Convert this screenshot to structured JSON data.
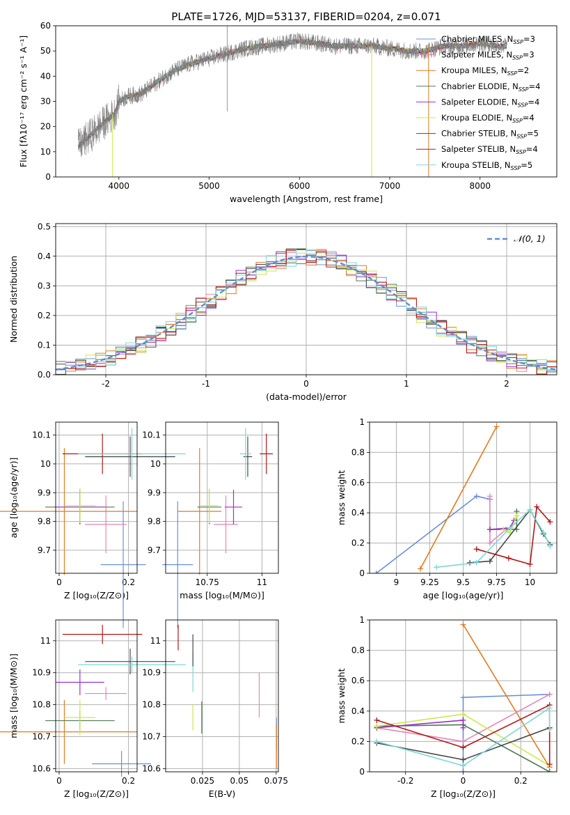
{
  "colors": {
    "Chabrier MILES": "#6a8fd9",
    "Salpeter MILES": "#e585b4",
    "Kroupa MILES": "#e07b1f",
    "Chabrier ELODIE": "#4f7a55",
    "Salpeter ELODIE": "#9b30c8",
    "Kroupa ELODIE": "#cde84a",
    "Chabrier STELIB": "#474747",
    "Salpeter STELIB": "#b01818",
    "Kroupa STELIB": "#7dd6d8",
    "data": "#7f7f7f",
    "grid": "#b0b0b0",
    "gauss": "#5b8fd6"
  },
  "chart_data": [
    {
      "id": "spectrum",
      "type": "line",
      "title": "PLATE=1726, MJD=53137, FIBERID=0204, z=0.071",
      "xlabel": "wavelength [Angstrom, rest frame]",
      "ylabel": "Flux [fλ10⁻¹⁷ erg cm⁻² s⁻¹ A⁻¹]",
      "xlim": [
        3300,
        8850
      ],
      "ylim": [
        0,
        60
      ],
      "xticks": [
        4000,
        5000,
        6000,
        7000,
        8000
      ],
      "yticks": [
        0,
        10,
        20,
        30,
        40,
        50,
        60
      ],
      "grid": false,
      "legend_position": "right",
      "x": [
        3550,
        3700,
        3850,
        3950,
        4000,
        4100,
        4250,
        4400,
        4600,
        4800,
        5000,
        5200,
        5400,
        5600,
        5800,
        6000,
        6200,
        6400,
        6600,
        6800,
        7000,
        7200,
        7400,
        7600,
        7800,
        8000,
        8200,
        8300
      ],
      "y": [
        12,
        17,
        22,
        25,
        30,
        32,
        33,
        37,
        42,
        45,
        47,
        49,
        51,
        52,
        53,
        54,
        53,
        52,
        52,
        52,
        51,
        50,
        50,
        52,
        52,
        53,
        52,
        52
      ],
      "legend": [
        {
          "name": "Chabrier MILES, N",
          "sub": "SSP",
          "tail": "=3"
        },
        {
          "name": "Salpeter MILES, N",
          "sub": "SSP",
          "tail": "=3"
        },
        {
          "name": "Kroupa MILES, N",
          "sub": "SSP",
          "tail": "=2"
        },
        {
          "name": "Chabrier ELODIE, N",
          "sub": "SSP",
          "tail": "=4"
        },
        {
          "name": "Salpeter ELODIE, N",
          "sub": "SSP",
          "tail": "=4"
        },
        {
          "name": "Kroupa ELODIE, N",
          "sub": "SSP",
          "tail": "=4"
        },
        {
          "name": "Chabrier STELIB, N",
          "sub": "SSP",
          "tail": "=5"
        },
        {
          "name": "Salpeter STELIB, N",
          "sub": "SSP",
          "tail": "=4"
        },
        {
          "name": "Kroupa STELIB, N",
          "sub": "SSP",
          "tail": "=5"
        }
      ]
    },
    {
      "id": "residuals",
      "type": "histogram",
      "xlabel": "(data-model)/error",
      "ylabel": "Normed distribution",
      "xlim": [
        -2.5,
        2.5
      ],
      "ylim": [
        0,
        0.51
      ],
      "xticks": [
        -2,
        -1,
        0,
        1,
        2
      ],
      "yticks": [
        0.0,
        0.1,
        0.2,
        0.3,
        0.4,
        0.5
      ],
      "grid": true,
      "bin_width": 0.1,
      "reference_label": "𝒩(0, 1)",
      "legend_position": "top-right"
    },
    {
      "id": "age-vs-Z",
      "type": "errorbar",
      "xlabel": "Z [log₁₀(Z/Z⊙)]",
      "ylabel": "age  [log₁₀(age/yr)]",
      "xlim": [
        -0.01,
        0.225
      ],
      "ylim": [
        9.62,
        10.145
      ],
      "xticks": [
        0.0,
        0.2
      ],
      "yticks": [
        9.7,
        9.8,
        9.9,
        10.0,
        10.1
      ],
      "grid": true,
      "points": [
        {
          "model": "Chabrier MILES",
          "x": 0.185,
          "xerr": 0.065,
          "y": 9.65,
          "yerr": 0.22
        },
        {
          "model": "Salpeter MILES",
          "x": 0.135,
          "xerr": 0.06,
          "y": 9.79,
          "yerr": 0.1
        },
        {
          "model": "Kroupa MILES",
          "x": 0.015,
          "xerr": 0.21,
          "y": 9.835,
          "yerr": 0.22
        },
        {
          "model": "Chabrier ELODIE",
          "x": 0.06,
          "xerr": 0.1,
          "y": 9.85,
          "yerr": 0.06
        },
        {
          "model": "Salpeter ELODIE",
          "x": 0.06,
          "xerr": 0.07,
          "y": 9.85,
          "yerr": 0.06
        },
        {
          "model": "Kroupa ELODIE",
          "x": 0.06,
          "xerr": 0.045,
          "y": 9.855,
          "yerr": 0.06
        },
        {
          "model": "Chabrier STELIB",
          "x": 0.205,
          "xerr": 0.13,
          "y": 10.025,
          "yerr": 0.07
        },
        {
          "model": "Salpeter STELIB",
          "x": 0.125,
          "xerr": 0.115,
          "y": 10.035,
          "yerr": 0.07
        },
        {
          "model": "Kroupa STELIB",
          "x": 0.21,
          "xerr": 0.155,
          "y": 10.035,
          "yerr": 0.09
        }
      ]
    },
    {
      "id": "age-vs-mass",
      "type": "errorbar",
      "xlabel": "mass [log₁₀(M/M⊙)]",
      "ylabel": "",
      "xlim": [
        10.56,
        11.075
      ],
      "ylim": [
        9.62,
        10.145
      ],
      "xticks": [
        10.75,
        11.0
      ],
      "yticks": [
        9.7,
        9.8,
        9.9,
        10.0,
        10.1
      ],
      "grid": true,
      "points": [
        {
          "model": "Chabrier MILES",
          "x": 10.615,
          "xerr": 0.07,
          "y": 9.65,
          "yerr": 0.22
        },
        {
          "model": "Salpeter MILES",
          "x": 10.835,
          "xerr": 0.055,
          "y": 9.79,
          "yerr": 0.1
        },
        {
          "model": "Kroupa MILES",
          "x": 10.715,
          "xerr": 0.1,
          "y": 9.835,
          "yerr": 0.22
        },
        {
          "model": "Chabrier ELODIE",
          "x": 10.76,
          "xerr": 0.055,
          "y": 9.85,
          "yerr": 0.06
        },
        {
          "model": "Salpeter ELODIE",
          "x": 10.87,
          "xerr": 0.04,
          "y": 9.85,
          "yerr": 0.06
        },
        {
          "model": "Kroupa ELODIE",
          "x": 10.76,
          "xerr": 0.04,
          "y": 9.855,
          "yerr": 0.06
        },
        {
          "model": "Chabrier STELIB",
          "x": 10.935,
          "xerr": 0.02,
          "y": 10.025,
          "yerr": 0.07
        },
        {
          "model": "Salpeter STELIB",
          "x": 11.02,
          "xerr": 0.03,
          "y": 10.035,
          "yerr": 0.07
        },
        {
          "model": "Kroupa STELIB",
          "x": 10.925,
          "xerr": 0.025,
          "y": 10.035,
          "yerr": 0.09
        }
      ]
    },
    {
      "id": "weight-vs-age",
      "type": "line",
      "xlabel": "age  [log₁₀(age/yr)]",
      "ylabel": "mass weight",
      "xlim": [
        8.8,
        10.2
      ],
      "ylim": [
        0.0,
        1.0
      ],
      "xticks": [
        9.0,
        9.25,
        9.5,
        9.75,
        10.0
      ],
      "yticks": [
        0.0,
        0.2,
        0.4,
        0.6,
        0.8,
        1.0
      ],
      "grid": true,
      "series": [
        {
          "model": "Chabrier MILES",
          "x": [
            8.85,
            9.6,
            9.7
          ],
          "y": [
            0.0,
            0.51,
            0.49
          ]
        },
        {
          "model": "Kroupa MILES",
          "x": [
            9.18,
            9.75
          ],
          "y": [
            0.03,
            0.97
          ]
        },
        {
          "model": "Salpeter MILES",
          "x": [
            9.7,
            9.7,
            9.82
          ],
          "y": [
            0.51,
            0.2,
            0.29
          ]
        },
        {
          "model": "Chabrier ELODIE",
          "x": [
            9.7,
            9.9,
            9.9
          ],
          "y": [
            0.29,
            0.29,
            0.41
          ]
        },
        {
          "model": "Salpeter ELODIE",
          "x": [
            9.7,
            9.85,
            9.88
          ],
          "y": [
            0.29,
            0.3,
            0.35
          ]
        },
        {
          "model": "Kroupa ELODIE",
          "x": [
            9.8,
            9.85,
            9.9
          ],
          "y": [
            0.29,
            0.27,
            0.38
          ]
        },
        {
          "model": "Chabrier STELIB",
          "x": [
            9.55,
            9.7,
            10.0,
            10.1,
            10.15
          ],
          "y": [
            0.07,
            0.08,
            0.42,
            0.26,
            0.19
          ]
        },
        {
          "model": "Salpeter STELIB",
          "x": [
            9.6,
            9.84,
            10.0,
            10.05,
            10.15
          ],
          "y": [
            0.16,
            0.1,
            0.06,
            0.44,
            0.34
          ]
        },
        {
          "model": "Kroupa STELIB",
          "x": [
            9.3,
            9.6,
            9.85,
            10.0,
            10.1,
            10.15
          ],
          "y": [
            0.04,
            0.07,
            0.3,
            0.42,
            0.27,
            0.18
          ]
        }
      ]
    },
    {
      "id": "mass-vs-Z",
      "type": "errorbar",
      "xlabel": "Z [log₁₀(Z/Z⊙)]",
      "ylabel": "mass [log₁₀(M/M⊙)]",
      "xlim": [
        -0.01,
        0.225
      ],
      "ylim": [
        10.59,
        11.065
      ],
      "xticks": [
        0.0,
        0.2
      ],
      "yticks": [
        10.6,
        10.7,
        10.8,
        10.9,
        11.0
      ],
      "grid": true,
      "points": [
        {
          "model": "Chabrier MILES",
          "x": 0.18,
          "xerr": 0.085,
          "y": 10.615,
          "yerr": 0.04
        },
        {
          "model": "Salpeter MILES",
          "x": 0.135,
          "xerr": 0.06,
          "y": 10.835,
          "yerr": 0.02
        },
        {
          "model": "Kroupa MILES",
          "x": 0.015,
          "xerr": 0.21,
          "y": 10.715,
          "yerr": 0.1
        },
        {
          "model": "Chabrier ELODIE",
          "x": 0.06,
          "xerr": 0.1,
          "y": 10.75,
          "yerr": 0.03
        },
        {
          "model": "Salpeter ELODIE",
          "x": 0.06,
          "xerr": 0.07,
          "y": 10.87,
          "yerr": 0.04
        },
        {
          "model": "Kroupa ELODIE",
          "x": 0.06,
          "xerr": 0.045,
          "y": 10.76,
          "yerr": 0.055
        },
        {
          "model": "Chabrier STELIB",
          "x": 0.205,
          "xerr": 0.13,
          "y": 10.935,
          "yerr": 0.04
        },
        {
          "model": "Salpeter STELIB",
          "x": 0.125,
          "xerr": 0.115,
          "y": 11.02,
          "yerr": 0.03
        },
        {
          "model": "Kroupa STELIB",
          "x": 0.21,
          "xerr": 0.155,
          "y": 10.925,
          "yerr": 0.025
        }
      ]
    },
    {
      "id": "mass-vs-ebv",
      "type": "errorbar",
      "xlabel": "E(B-V)",
      "ylabel": "",
      "xlim": [
        0.0,
        0.0765
      ],
      "ylim": [
        10.59,
        11.065
      ],
      "xticks": [
        0.025,
        0.05,
        0.075
      ],
      "yticks": [
        10.6,
        10.7,
        10.8,
        10.9,
        11.0
      ],
      "grid": true,
      "points": [
        {
          "model": "Chabrier MILES",
          "x": 0.0752,
          "xerr": 0,
          "y": 10.71,
          "yerr": 0.05
        },
        {
          "model": "Kroupa MILES",
          "x": 0.0752,
          "xerr": 0,
          "y": 10.67,
          "yerr": 0.07
        },
        {
          "model": "Salpeter MILES",
          "x": 0.0635,
          "xerr": 0,
          "y": 10.83,
          "yerr": 0.07
        },
        {
          "model": "Chabrier ELODIE",
          "x": 0.0245,
          "xerr": 0,
          "y": 10.76,
          "yerr": 0.05
        },
        {
          "model": "Kroupa ELODIE",
          "x": 0.0185,
          "xerr": 0,
          "y": 10.76,
          "yerr": 0.04
        },
        {
          "model": "Kroupa STELIB",
          "x": 0.0185,
          "xerr": 0,
          "y": 10.9,
          "yerr": 0.06
        },
        {
          "model": "Chabrier STELIB",
          "x": 0.0185,
          "xerr": 0,
          "y": 10.97,
          "yerr": 0.05
        },
        {
          "model": "Salpeter STELIB",
          "x": 0.0085,
          "xerr": 0,
          "y": 11.01,
          "yerr": 0.04
        }
      ]
    },
    {
      "id": "weight-vs-Z",
      "type": "line",
      "xlabel": "Z [log₁₀(Z/Z⊙)]",
      "ylabel": "mass weight",
      "xlim": [
        -0.325,
        0.325
      ],
      "ylim": [
        0.0,
        1.0
      ],
      "xticks": [
        -0.2,
        0.0,
        0.2
      ],
      "yticks": [
        0.0,
        0.2,
        0.4,
        0.6,
        0.8,
        1.0
      ],
      "grid": true,
      "series": [
        {
          "model": "Chabrier MILES",
          "x": [
            0.0,
            0.0,
            0.3
          ],
          "y": [
            0.0,
            0.49,
            0.51
          ]
        },
        {
          "model": "Kroupa MILES",
          "x": [
            0.0,
            0.3
          ],
          "y": [
            0.97,
            0.03
          ]
        },
        {
          "model": "Salpeter MILES",
          "x": [
            -0.3,
            0.0,
            0.3
          ],
          "y": [
            0.29,
            0.2,
            0.51
          ]
        },
        {
          "model": "Chabrier ELODIE",
          "x": [
            -0.3,
            0.0,
            0.3
          ],
          "y": [
            0.3,
            0.31,
            0.0
          ]
        },
        {
          "model": "Salpeter ELODIE",
          "x": [
            -0.3,
            0.0,
            0.0
          ],
          "y": [
            0.29,
            0.34,
            0.29
          ]
        },
        {
          "model": "Kroupa ELODIE",
          "x": [
            -0.3,
            0.0,
            0.3
          ],
          "y": [
            0.3,
            0.38,
            0.04
          ]
        },
        {
          "model": "Chabrier STELIB",
          "x": [
            -0.3,
            0.0,
            0.3
          ],
          "y": [
            0.19,
            0.08,
            0.29
          ]
        },
        {
          "model": "Salpeter STELIB",
          "x": [
            -0.3,
            0.0,
            0.3,
            0.3
          ],
          "y": [
            0.34,
            0.16,
            0.44,
            0.05
          ]
        },
        {
          "model": "Kroupa STELIB",
          "x": [
            -0.3,
            0.0,
            0.3,
            0.3
          ],
          "y": [
            0.2,
            0.04,
            0.42,
            0.28
          ]
        }
      ]
    }
  ]
}
